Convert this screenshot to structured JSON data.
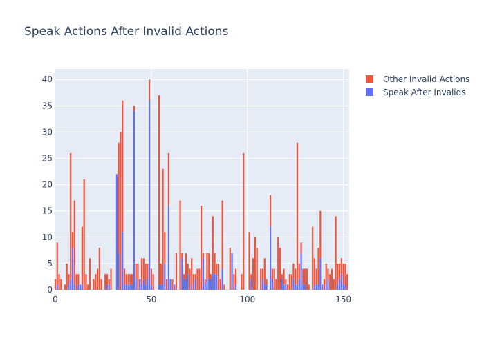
{
  "chart_data": {
    "type": "bar",
    "barmode": "stack",
    "title": "Speak Actions After Invalid Actions",
    "xlabel": "",
    "ylabel": "",
    "xlim": [
      0,
      153
    ],
    "ylim": [
      0,
      42
    ],
    "x_ticks": [
      0,
      50,
      100,
      150
    ],
    "y_ticks": [
      0,
      5,
      10,
      15,
      20,
      25,
      30,
      35,
      40
    ],
    "grid": true,
    "legend_position": "top-right",
    "colors": {
      "plot_bg": "#e5ecf6",
      "grid": "#ffffff",
      "other_invalid": "#ef553b",
      "speak_after": "#636efa"
    },
    "x": [
      0,
      1,
      2,
      3,
      4,
      5,
      6,
      7,
      8,
      9,
      10,
      11,
      12,
      13,
      14,
      15,
      16,
      17,
      18,
      19,
      20,
      21,
      22,
      23,
      24,
      25,
      26,
      27,
      28,
      29,
      30,
      31,
      32,
      33,
      34,
      35,
      36,
      37,
      38,
      39,
      40,
      41,
      42,
      43,
      44,
      45,
      46,
      47,
      48,
      49,
      50,
      51,
      52,
      53,
      54,
      55,
      56,
      57,
      58,
      59,
      60,
      61,
      62,
      63,
      64,
      65,
      66,
      67,
      68,
      69,
      70,
      71,
      72,
      73,
      74,
      75,
      76,
      77,
      78,
      79,
      80,
      81,
      82,
      83,
      84,
      85,
      86,
      87,
      88,
      89,
      90,
      91,
      92,
      93,
      94,
      95,
      96,
      97,
      98,
      99,
      100,
      101,
      102,
      103,
      104,
      105,
      106,
      107,
      108,
      109,
      110,
      111,
      112,
      113,
      114,
      115,
      116,
      117,
      118,
      119,
      120,
      121,
      122,
      123,
      124,
      125,
      126,
      127,
      128,
      129,
      130,
      131,
      132,
      133,
      134,
      135,
      136,
      137,
      138,
      139,
      140,
      141,
      142,
      143,
      144,
      145,
      146,
      147,
      148,
      149,
      150,
      151,
      152
    ],
    "series": [
      {
        "name": "Speak After Invalids",
        "values": [
          0,
          1,
          0,
          0,
          0,
          0,
          0,
          1,
          2,
          8,
          1,
          0,
          1,
          1,
          1,
          0,
          0,
          0,
          0,
          0,
          0,
          0,
          0,
          0,
          0,
          0,
          0,
          1,
          1,
          0,
          0,
          0,
          22,
          7,
          0,
          11,
          1,
          1,
          1,
          1,
          1,
          34,
          2,
          0,
          2,
          1,
          2,
          1,
          2,
          36,
          1,
          0,
          0,
          0,
          1,
          1,
          1,
          5,
          0,
          16,
          2,
          0,
          1,
          0,
          0,
          0,
          6,
          2,
          2,
          3,
          0,
          1,
          0,
          2,
          0,
          0,
          0,
          6,
          1,
          2,
          2,
          2,
          3,
          3,
          3,
          0,
          0,
          4,
          0,
          0,
          0,
          0,
          7,
          0,
          1,
          0,
          0,
          0,
          0,
          0,
          0,
          0,
          2,
          0,
          0,
          0,
          0,
          0,
          2,
          1,
          1,
          0,
          12,
          2,
          0,
          0,
          0,
          0,
          2,
          1,
          1,
          0,
          0,
          0,
          2,
          1,
          1,
          2,
          7,
          1,
          1,
          0,
          0,
          0,
          0,
          1,
          1,
          1,
          6,
          1,
          0,
          1,
          2,
          0,
          0,
          0,
          0,
          1,
          2,
          3,
          1,
          1,
          0
        ]
      },
      {
        "name": "Other Invalid Actions",
        "values": [
          2,
          8,
          3,
          2,
          0,
          1,
          5,
          2,
          24,
          3,
          16,
          3,
          2,
          0,
          11,
          21,
          3,
          1,
          6,
          0,
          2,
          3,
          4,
          8,
          2,
          0,
          3,
          2,
          1,
          4,
          0,
          0,
          0,
          21,
          30,
          25,
          3,
          2,
          2,
          2,
          2,
          1,
          3,
          5,
          0,
          5,
          4,
          4,
          3,
          4,
          3,
          3,
          0,
          0,
          36,
          4,
          22,
          6,
          2,
          10,
          0,
          2,
          0,
          7,
          0,
          17,
          1,
          1,
          5,
          2,
          4,
          5,
          3,
          1,
          4,
          4,
          16,
          1,
          1,
          5,
          5,
          1,
          11,
          4,
          2,
          5,
          2,
          13,
          1,
          0,
          0,
          8,
          0,
          3,
          3,
          0,
          0,
          3,
          26,
          0,
          0,
          11,
          1,
          6,
          10,
          8,
          0,
          4,
          2,
          5,
          1,
          0,
          6,
          2,
          4,
          2,
          10,
          8,
          1,
          3,
          1,
          1,
          3,
          3,
          3,
          3,
          27,
          3,
          2,
          3,
          3,
          4,
          1,
          0,
          12,
          5,
          3,
          7,
          9,
          0,
          2,
          4,
          2,
          3,
          4,
          2,
          14,
          4,
          3,
          3,
          4,
          4,
          3
        ]
      }
    ]
  }
}
